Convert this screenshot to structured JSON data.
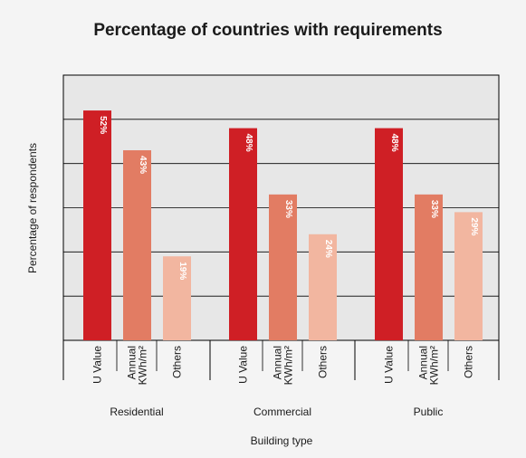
{
  "chart_data": {
    "type": "bar",
    "title": "Percentage of countries with requirements",
    "xlabel": "Building type",
    "ylabel": "Percentage of respondents",
    "ylim": [
      0,
      60
    ],
    "grid": true,
    "groups": [
      "Residential",
      "Commercial",
      "Public"
    ],
    "categories": [
      "U Value",
      "Annual KWh/m²",
      "Others"
    ],
    "category_tick_lines": [
      [
        "U Value"
      ],
      [
        "Annual",
        "KWh/m²"
      ],
      [
        "Others"
      ]
    ],
    "series_colors": [
      "#cf1f25",
      "#e27c63",
      "#f2b6a0"
    ],
    "values": [
      [
        52,
        43,
        19
      ],
      [
        48,
        33,
        24
      ],
      [
        48,
        33,
        29
      ]
    ],
    "value_labels": [
      [
        "52%",
        "43%",
        "19%"
      ],
      [
        "48%",
        "33%",
        "24%"
      ],
      [
        "48%",
        "33%",
        "29%"
      ]
    ]
  }
}
